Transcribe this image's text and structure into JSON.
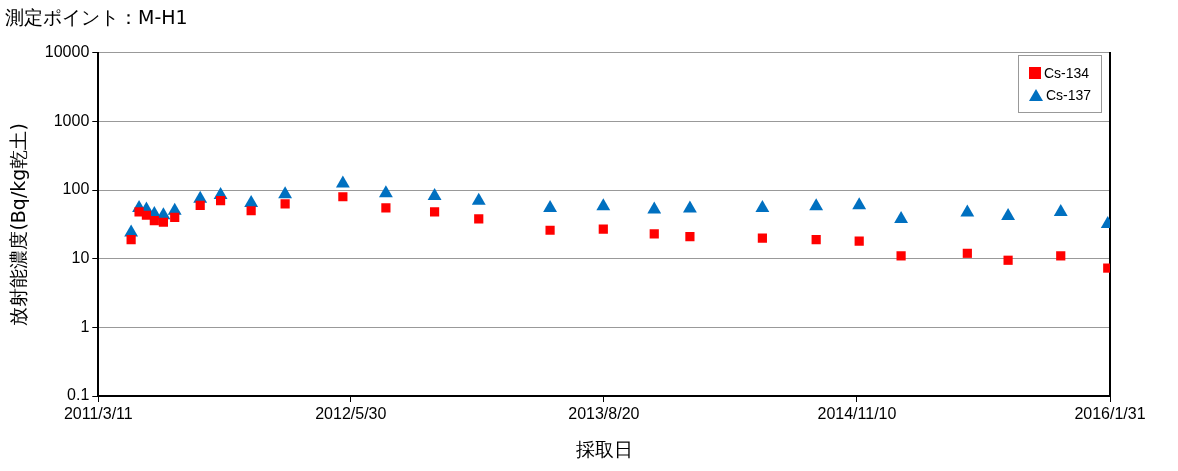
{
  "chart_data": {
    "type": "scatter",
    "title": "測定ポイント：M-H1",
    "xlabel": "採取日",
    "ylabel": "放射能濃度(Bq/kg乾土)",
    "x": [
      "2011-05-08",
      "2011-05-22",
      "2011-06-04",
      "2011-06-18",
      "2011-07-04",
      "2011-07-24",
      "2011-09-07",
      "2011-10-13",
      "2011-12-06",
      "2012-02-04",
      "2012-05-16",
      "2012-07-31",
      "2012-10-25",
      "2013-01-11",
      "2013-05-17",
      "2013-08-19",
      "2013-11-17",
      "2014-01-19",
      "2014-05-27",
      "2014-08-30",
      "2014-11-14",
      "2015-01-27",
      "2015-05-24",
      "2015-08-04",
      "2015-11-05",
      "2016-01-27"
    ],
    "series": [
      {
        "name": "Cs-134",
        "color": "#ff0000",
        "marker": "square",
        "values": [
          19,
          48,
          43,
          36,
          34,
          40,
          60,
          70,
          50,
          63,
          80,
          55,
          48,
          38,
          26,
          27,
          23,
          21,
          20,
          19,
          18,
          11,
          12,
          9.5,
          11,
          7.3
        ]
      },
      {
        "name": "Cs-137",
        "color": "#0070c0",
        "marker": "triangle",
        "values": [
          24,
          55,
          52,
          45,
          43,
          50,
          75,
          85,
          65,
          87,
          125,
          90,
          82,
          70,
          55,
          58,
          52,
          54,
          55,
          58,
          60,
          38,
          47,
          42,
          48,
          32
        ]
      }
    ],
    "xlim": [
      "2011-03-11",
      "2016-01-31"
    ],
    "xticks": [
      {
        "value": "2011-03-11",
        "label": "2011/3/11"
      },
      {
        "value": "2012-05-30",
        "label": "2012/5/30"
      },
      {
        "value": "2013-08-20",
        "label": "2013/8/20"
      },
      {
        "value": "2014-11-10",
        "label": "2014/11/10"
      },
      {
        "value": "2016-01-31",
        "label": "2016/1/31"
      }
    ],
    "ylim": [
      0.1,
      10000
    ],
    "yticks": [
      0.1,
      1,
      10,
      100,
      1000,
      10000
    ],
    "log": "y",
    "grid": "y",
    "legend": "top right"
  }
}
